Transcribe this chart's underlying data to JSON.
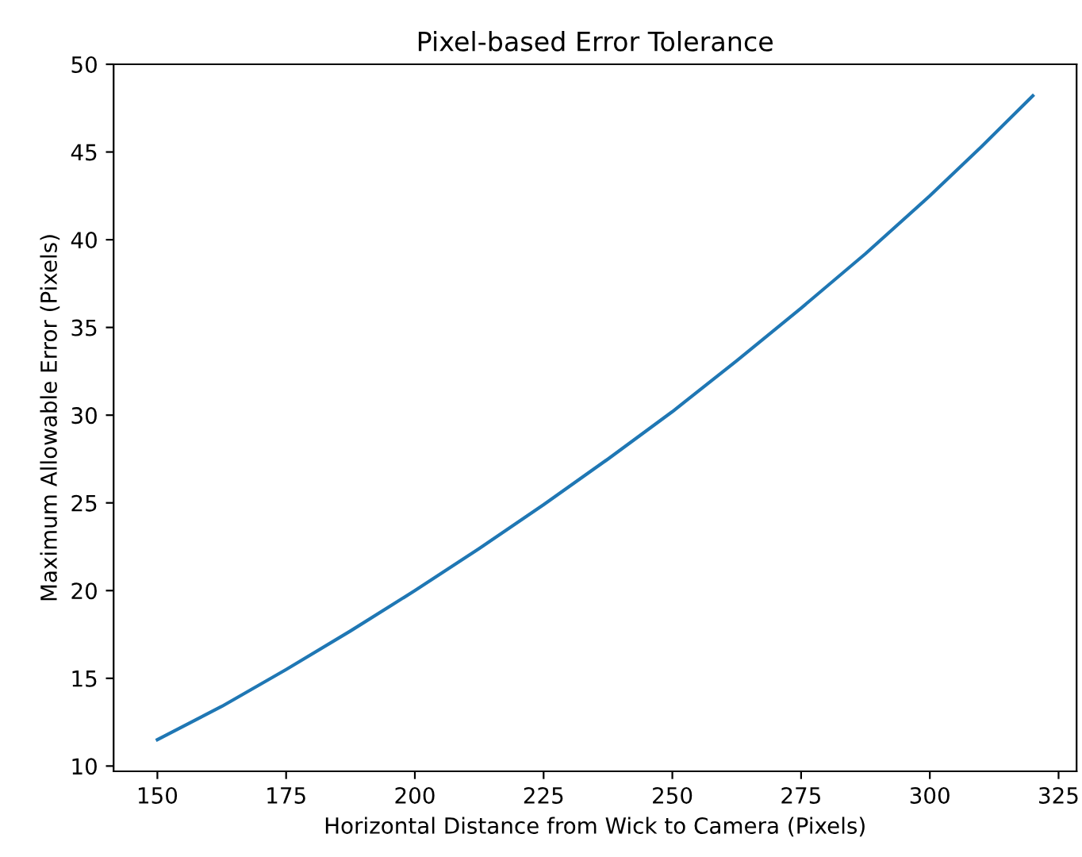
{
  "chart_data": {
    "type": "line",
    "title": "Pixel-based Error Tolerance",
    "xlabel": "Horizontal Distance from Wick to Camera (Pixels)",
    "ylabel": "Maximum Allowable Error (Pixels)",
    "x": [
      150,
      162.5,
      175,
      187.5,
      200,
      212.5,
      225,
      237.5,
      250,
      262.5,
      275,
      287.5,
      300,
      310,
      320
    ],
    "series": [
      {
        "color": "#1f77b4",
        "values": [
          11.5,
          13.4,
          15.5,
          17.7,
          20.0,
          22.4,
          24.9,
          27.5,
          30.2,
          33.1,
          36.1,
          39.2,
          42.5,
          45.3,
          48.2
        ]
      }
    ],
    "xlim": [
      141.5,
      328.5
    ],
    "ylim": [
      9.7,
      50
    ],
    "xticks": [
      150,
      175,
      200,
      225,
      250,
      275,
      300,
      325
    ],
    "yticks": [
      10,
      15,
      20,
      25,
      30,
      35,
      40,
      45,
      50
    ],
    "grid": false,
    "legend": false,
    "marker": "none",
    "line_style": "solid"
  }
}
